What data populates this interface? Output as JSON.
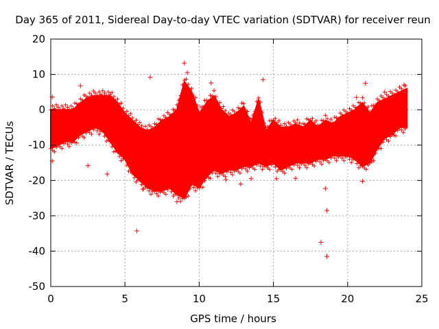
{
  "chart_data": {
    "type": "scatter",
    "title": "Day 365 of 2011, Sidereal Day-to-day VTEC variation (SDTVAR) for receiver reun",
    "xlabel": "GPS time / hours",
    "ylabel": "SDTVAR / TECUs",
    "xlim": [
      0,
      25
    ],
    "ylim": [
      -50,
      20
    ],
    "xticks": [
      0,
      5,
      10,
      15,
      20,
      25
    ],
    "yticks": [
      -50,
      -40,
      -30,
      -20,
      -10,
      0,
      10,
      20
    ],
    "grid": true,
    "marker": "+",
    "series_color": "#ff0000",
    "envelope": {
      "hours": [
        0,
        0.5,
        1,
        1.5,
        2,
        2.5,
        3,
        3.5,
        4,
        4.5,
        5,
        5.5,
        6,
        6.5,
        7,
        7.5,
        8,
        8.5,
        9,
        9.5,
        10,
        10.5,
        11,
        11.5,
        12,
        12.5,
        13,
        13.5,
        14,
        14.5,
        15,
        15.5,
        16,
        16.5,
        17,
        17.5,
        18,
        18.5,
        19,
        19.5,
        20,
        20.5,
        21,
        21.5,
        22,
        22.5,
        23,
        23.5,
        24
      ],
      "upper": [
        0,
        0,
        0,
        0,
        2,
        3.5,
        4,
        4,
        4,
        2,
        -1,
        -3,
        -5,
        -6,
        -5,
        -3,
        -2,
        0,
        8,
        5,
        -1,
        2,
        4,
        0,
        -2,
        -1,
        1,
        -4,
        3,
        -6,
        -3,
        -5,
        -5,
        -4,
        -5,
        -3,
        -5,
        -3,
        -4,
        -2,
        -1,
        0,
        2,
        -1,
        2,
        3,
        4,
        5,
        6
      ],
      "lower": [
        -11,
        -10,
        -9,
        -9,
        -7,
        -6,
        -5,
        -6,
        -9,
        -12,
        -14,
        -18,
        -20,
        -22,
        -23,
        -23,
        -22,
        -24,
        -25,
        -21,
        -22,
        -19,
        -17,
        -18,
        -17,
        -17,
        -16,
        -16,
        -15,
        -16,
        -15,
        -17,
        -16,
        -15,
        -15,
        -15,
        -14,
        -14,
        -13,
        -13,
        -13,
        -14,
        -16,
        -15,
        -11,
        -8,
        -7,
        -5,
        -5
      ]
    },
    "outliers": [
      {
        "x": 0.1,
        "y": 3.6
      },
      {
        "x": 0.1,
        "y": -14.5
      },
      {
        "x": 2.0,
        "y": 6.8
      },
      {
        "x": 2.5,
        "y": -15.8
      },
      {
        "x": 3.8,
        "y": -18.2
      },
      {
        "x": 5.8,
        "y": -34.3
      },
      {
        "x": 6.2,
        "y": -22.5
      },
      {
        "x": 6.7,
        "y": 9.2
      },
      {
        "x": 8.5,
        "y": -26.0
      },
      {
        "x": 9.0,
        "y": 13.2
      },
      {
        "x": 9.2,
        "y": 10.5
      },
      {
        "x": 10.8,
        "y": 7.6
      },
      {
        "x": 11.8,
        "y": -19.8
      },
      {
        "x": 12.8,
        "y": -21.0
      },
      {
        "x": 13.5,
        "y": -19.5
      },
      {
        "x": 14.3,
        "y": 8.5
      },
      {
        "x": 15.2,
        "y": -19.5
      },
      {
        "x": 16.5,
        "y": -19.4
      },
      {
        "x": 18.2,
        "y": -37.5
      },
      {
        "x": 18.5,
        "y": -22.3
      },
      {
        "x": 18.6,
        "y": -28.5
      },
      {
        "x": 18.6,
        "y": -41.5
      },
      {
        "x": 21.0,
        "y": -20.2
      },
      {
        "x": 21.2,
        "y": 7.5
      },
      {
        "x": 22.5,
        "y": 5.0
      },
      {
        "x": 23.8,
        "y": 7.0
      },
      {
        "x": 20.6,
        "y": 3.5
      }
    ]
  }
}
